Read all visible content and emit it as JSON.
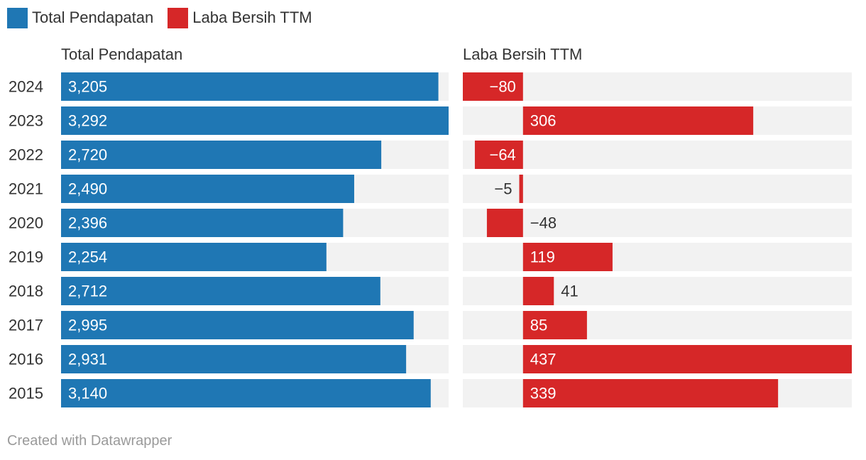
{
  "legend": {
    "revenue_label": "Total Pendapatan",
    "profit_label": "Laba Bersih TTM"
  },
  "colors": {
    "revenue": "#1f77b4",
    "profit": "#d62728",
    "track": "#f2f2f2"
  },
  "chart_data": {
    "type": "bar",
    "orientation": "horizontal",
    "categories": [
      "2024",
      "2023",
      "2022",
      "2021",
      "2020",
      "2019",
      "2018",
      "2017",
      "2016",
      "2015"
    ],
    "series": [
      {
        "name": "Total Pendapatan",
        "values": [
          3205,
          3292,
          2720,
          2490,
          2396,
          2254,
          2712,
          2995,
          2931,
          3140
        ],
        "labels": [
          "3,205",
          "3,292",
          "2,720",
          "2,490",
          "2,396",
          "2,254",
          "2,712",
          "2,995",
          "2,931",
          "3,140"
        ],
        "range": [
          0,
          3292
        ]
      },
      {
        "name": "Laba Bersih TTM",
        "values": [
          -80,
          306,
          -64,
          -5,
          -48,
          119,
          41,
          85,
          437,
          339
        ],
        "labels": [
          "−80",
          "306",
          "−64",
          "−5",
          "−48",
          "119",
          "41",
          "85",
          "437",
          "339"
        ],
        "range": [
          -80,
          437
        ]
      }
    ],
    "legend_position": "top-left",
    "grid": false
  },
  "footer": {
    "credit": "Created with Datawrapper"
  }
}
